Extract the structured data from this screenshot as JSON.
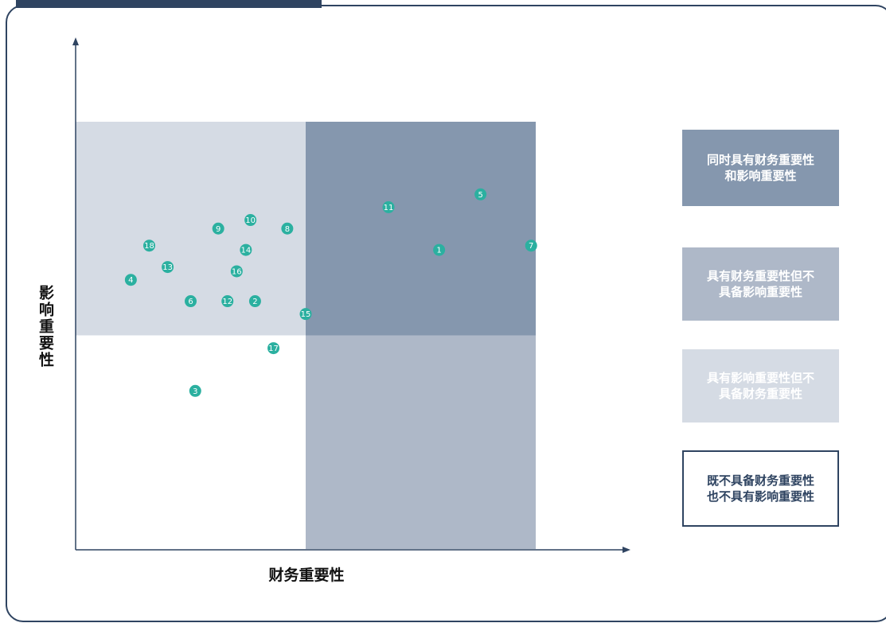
{
  "chart_data": {
    "type": "scatter",
    "xlabel": "财务重要性",
    "ylabel": "影响重要性",
    "quadrant_colors": {
      "both": "#8597ae",
      "financial_only": "#aeb8c8",
      "impact_only": "#d5dbe4",
      "neither": "#ffffff"
    },
    "point_color": "#2bb0a0",
    "legend": [
      {
        "label": "同时具有财务重要性和影响重要性",
        "line1": "同时具有财务重要性",
        "line2": "和影响重要性",
        "color": "#8597ae"
      },
      {
        "label": "具有财务重要性但不具备影响重要性",
        "line1": "具有财务重要性但不",
        "line2": "具备影响重要性",
        "color": "#aeb8c8"
      },
      {
        "label": "具有影响重要性但不具备财务重要性",
        "line1": "具有影响重要性但不",
        "line2": "具备财务重要性",
        "color": "#d5dbe4"
      },
      {
        "label": "既不具备财务重要性也不具有影响重要性",
        "line1": "既不具备财务重要性",
        "line2": "也不具有影响重要性",
        "color": "#ffffff"
      }
    ],
    "xlim": [
      0,
      10
    ],
    "ylim": [
      0,
      10
    ],
    "thresholds": {
      "x": 5,
      "y": 5
    },
    "points": [
      {
        "label": "1",
        "x": 7.9,
        "y": 7.0
      },
      {
        "label": "2",
        "x": 3.9,
        "y": 5.8
      },
      {
        "label": "3",
        "x": 2.6,
        "y": 3.7
      },
      {
        "label": "4",
        "x": 1.2,
        "y": 6.3
      },
      {
        "label": "5",
        "x": 8.8,
        "y": 8.3
      },
      {
        "label": "6",
        "x": 2.5,
        "y": 5.8
      },
      {
        "label": "7",
        "x": 9.9,
        "y": 7.1
      },
      {
        "label": "8",
        "x": 4.6,
        "y": 7.5
      },
      {
        "label": "9",
        "x": 3.1,
        "y": 7.5
      },
      {
        "label": "10",
        "x": 3.8,
        "y": 7.7
      },
      {
        "label": "11",
        "x": 6.8,
        "y": 8.0
      },
      {
        "label": "12",
        "x": 3.3,
        "y": 5.8
      },
      {
        "label": "13",
        "x": 2.0,
        "y": 6.6
      },
      {
        "label": "14",
        "x": 3.7,
        "y": 7.0
      },
      {
        "label": "15",
        "x": 5.0,
        "y": 5.5
      },
      {
        "label": "16",
        "x": 3.5,
        "y": 6.5
      },
      {
        "label": "17",
        "x": 4.3,
        "y": 4.7
      },
      {
        "label": "18",
        "x": 1.6,
        "y": 7.1
      }
    ]
  }
}
